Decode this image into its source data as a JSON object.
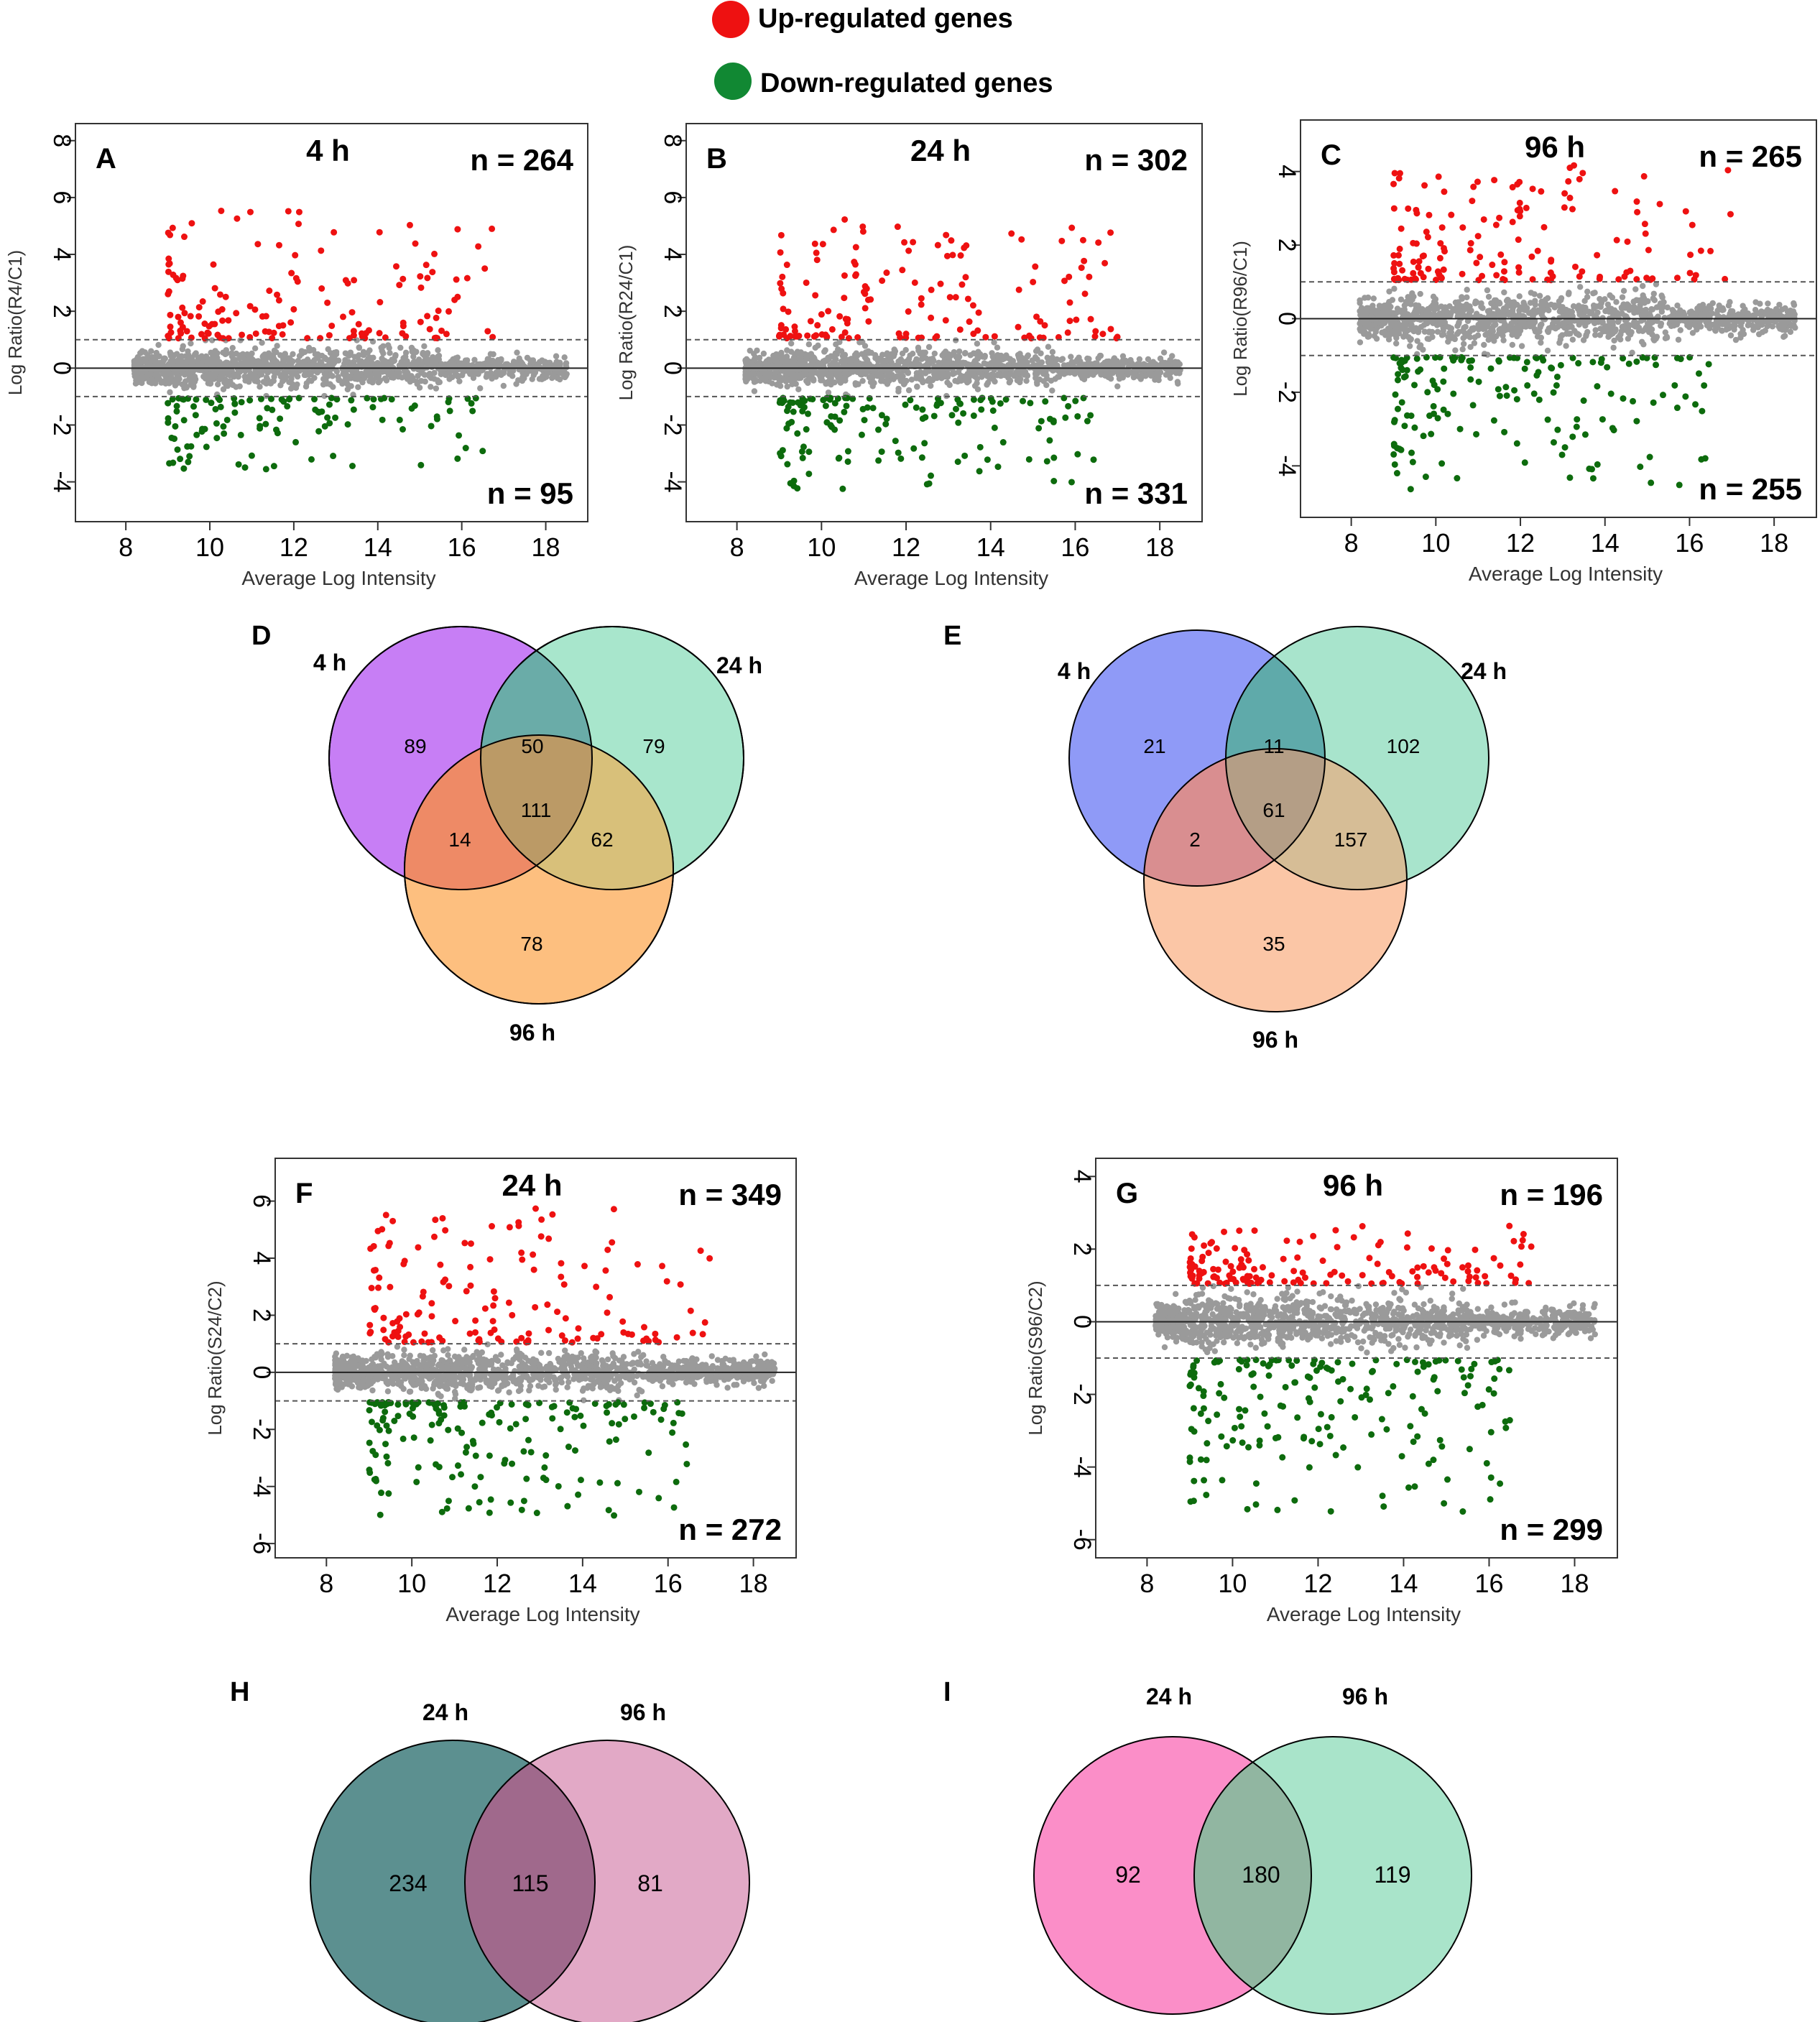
{
  "legend": {
    "items": [
      {
        "label": "Up-regulated genes",
        "color": "#ee1111"
      },
      {
        "label": "Down-regulated genes",
        "color": "#118833"
      }
    ]
  },
  "colors": {
    "up": "#ee1111",
    "down": "#0d6b0d",
    "neutral": "#9a9a9a",
    "threshold_line": "#555555"
  },
  "chart_data": [
    {
      "type": "scatter",
      "panel": "A",
      "time": "4 h",
      "ylabel": "Log Ratio(R4/C1)",
      "xlabel": "Average Log Intensity",
      "x_ticks": [
        8,
        10,
        12,
        14,
        16,
        18
      ],
      "y_ticks": [
        -4,
        -2,
        0,
        2,
        4,
        6,
        8
      ],
      "xlim": [
        6.8,
        19.0
      ],
      "ylim": [
        -5.4,
        8.6
      ],
      "threshold": 1,
      "n_up": "n = 264",
      "n_down": "n = 95",
      "up_spread": 4.6,
      "down_spread": 2.6
    },
    {
      "type": "scatter",
      "panel": "B",
      "time": "24 h",
      "ylabel": "Log Ratio(R24/C1)",
      "xlabel": "Average Log Intensity",
      "x_ticks": [
        8,
        10,
        12,
        14,
        16,
        18
      ],
      "y_ticks": [
        -4,
        -2,
        0,
        2,
        4,
        6,
        8
      ],
      "xlim": [
        6.8,
        19.0
      ],
      "ylim": [
        -5.4,
        8.6
      ],
      "threshold": 1,
      "n_up": "n = 302",
      "n_down": "n = 331",
      "up_spread": 4.2,
      "down_spread": 3.2
    },
    {
      "type": "scatter",
      "panel": "C",
      "time": "96 h",
      "ylabel": "Log Ratio(R96/C1)",
      "xlabel": "Average Log Intensity",
      "x_ticks": [
        8,
        10,
        12,
        14,
        16,
        18
      ],
      "y_ticks": [
        -4,
        -2,
        0,
        2,
        4
      ],
      "xlim": [
        6.8,
        19.0
      ],
      "ylim": [
        -5.4,
        5.4
      ],
      "threshold": 1,
      "n_up": "n = 265",
      "n_down": "n = 255",
      "up_spread": 3.2,
      "down_spread": 3.6
    },
    {
      "type": "scatter",
      "panel": "F",
      "time": "24 h",
      "ylabel": "Log Ratio(S24/C2)",
      "xlabel": "Average Log Intensity",
      "x_ticks": [
        8,
        10,
        12,
        14,
        16,
        18
      ],
      "y_ticks": [
        -6,
        -4,
        -2,
        0,
        2,
        4,
        6
      ],
      "xlim": [
        6.8,
        19.0
      ],
      "ylim": [
        -6.5,
        7.5
      ],
      "threshold": 1,
      "n_up": "n = 349",
      "n_down": "n = 272",
      "up_spread": 4.8,
      "down_spread": 4.0
    },
    {
      "type": "scatter",
      "panel": "G",
      "time": "96 h",
      "ylabel": "Log Ratio(S96/C2)",
      "xlabel": "Average Log Intensity",
      "x_ticks": [
        8,
        10,
        12,
        14,
        16,
        18
      ],
      "y_ticks": [
        -6,
        -4,
        -2,
        0,
        2,
        4
      ],
      "xlim": [
        6.8,
        19.0
      ],
      "ylim": [
        -6.5,
        4.5
      ],
      "threshold": 1,
      "n_up": "n = 196",
      "n_down": "n = 299",
      "up_spread": 1.6,
      "down_spread": 4.2
    }
  ],
  "venns": [
    {
      "panel": "D",
      "type": "venn3",
      "sets": [
        {
          "label": "4 h",
          "color": "#c77ef5"
        },
        {
          "label": "24 h",
          "color": "#a8e6cc"
        },
        {
          "label": "96 h",
          "color": "#fdbf7f"
        }
      ],
      "regions": {
        "a_only": "89",
        "ab": "50",
        "b_only": "79",
        "abc": "111",
        "ac": "14",
        "bc": "62",
        "c_only": "78"
      },
      "region_colors": {
        "ab": "#6aaca8",
        "ac": "#ee8a66",
        "bc": "#d8c07a",
        "abc": "#bb9a66"
      }
    },
    {
      "panel": "E",
      "type": "venn3",
      "sets": [
        {
          "label": "4 h",
          "color": "#8f9af7"
        },
        {
          "label": "24 h",
          "color": "#a8e4cc"
        },
        {
          "label": "96 h",
          "color": "#fbc6a6"
        }
      ],
      "regions": {
        "a_only": "21",
        "ab": "11",
        "b_only": "102",
        "abc": "61",
        "ac": "2",
        "bc": "157",
        "c_only": "35"
      },
      "region_colors": {
        "ab": "#5faaaa",
        "ac": "#d98e90",
        "bc": "#d6bd96",
        "abc": "#b49e86"
      }
    },
    {
      "panel": "H",
      "type": "venn2",
      "sets": [
        {
          "label": "24 h",
          "color": "#5c9090"
        },
        {
          "label": "96 h",
          "color": "#e2a9c6"
        }
      ],
      "regions": {
        "a_only": "234",
        "ab": "115",
        "b_only": "81"
      },
      "region_colors": {
        "ab": "#a0698c"
      }
    },
    {
      "panel": "I",
      "type": "venn2",
      "sets": [
        {
          "label": "24 h",
          "color": "#fb8ec8"
        },
        {
          "label": "96 h",
          "color": "#a9e4ca"
        }
      ],
      "regions": {
        "a_only": "92",
        "ab": "180",
        "b_only": "119"
      },
      "region_colors": {
        "ab": "#91b6a1"
      }
    }
  ]
}
